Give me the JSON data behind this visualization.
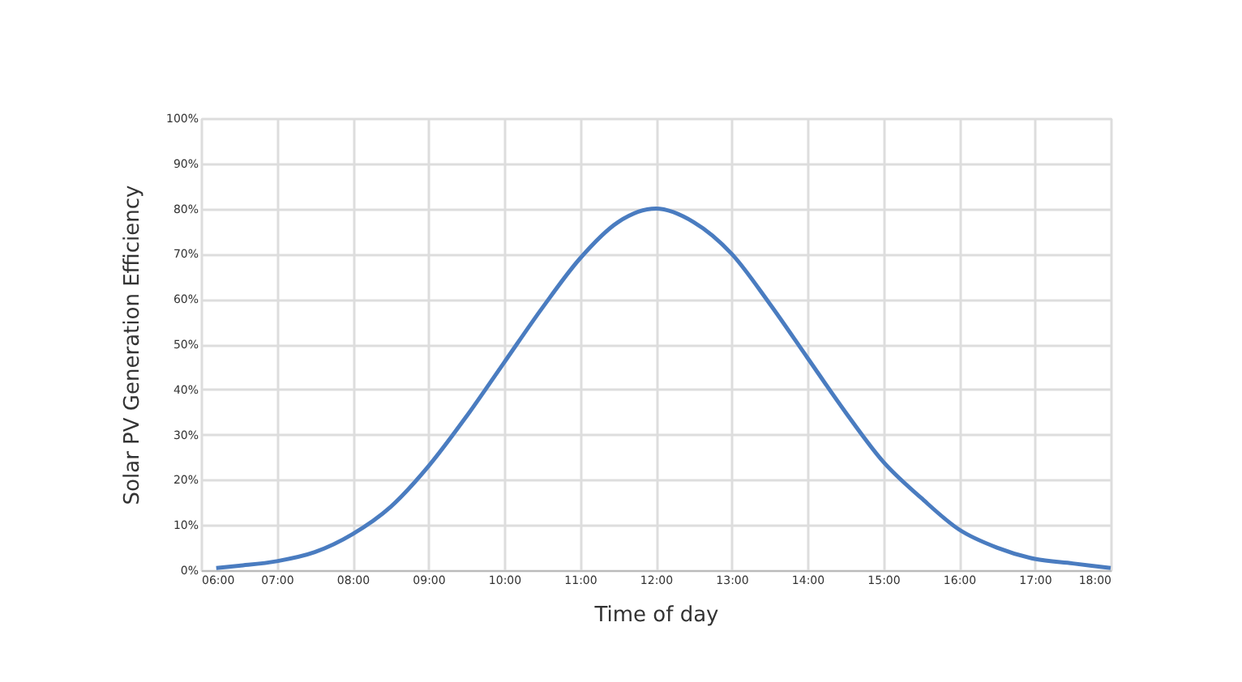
{
  "chart_data": {
    "type": "line",
    "xlabel": "Time of day",
    "ylabel": "Solar PV Generation Efficiency",
    "x": [
      6.2,
      6.5,
      7,
      7.5,
      8,
      8.5,
      9,
      9.5,
      10,
      10.5,
      11,
      11.5,
      12,
      12.5,
      13,
      13.5,
      14,
      14.5,
      15,
      15.5,
      16,
      16.5,
      17,
      17.5,
      18
    ],
    "series": [
      {
        "color": "#4a7cc0",
        "values": [
          0.5,
          1,
          2,
          4,
          8,
          14,
          23,
          34,
          46,
          58,
          69,
          77,
          80,
          77,
          70,
          59,
          47,
          35,
          24,
          16,
          9,
          5,
          2.5,
          1.5,
          0.5
        ]
      }
    ],
    "xlim": [
      6,
      18
    ],
    "xticks": [
      {
        "value": 6,
        "label": "06:00"
      },
      {
        "value": 7,
        "label": "07:00"
      },
      {
        "value": 8,
        "label": "08:00"
      },
      {
        "value": 9,
        "label": "09:00"
      },
      {
        "value": 10,
        "label": "10:00"
      },
      {
        "value": 11,
        "label": "11:00"
      },
      {
        "value": 12,
        "label": "12:00"
      },
      {
        "value": 13,
        "label": "13:00"
      },
      {
        "value": 14,
        "label": "14:00"
      },
      {
        "value": 15,
        "label": "15:00"
      },
      {
        "value": 16,
        "label": "16:00"
      },
      {
        "value": 17,
        "label": "17:00"
      },
      {
        "value": 18,
        "label": "18:00"
      }
    ],
    "ylim": [
      0,
      100
    ],
    "yticks": [
      {
        "value": 0,
        "label": "0%"
      },
      {
        "value": 10,
        "label": "10%"
      },
      {
        "value": 20,
        "label": "20%"
      },
      {
        "value": 30,
        "label": "30%"
      },
      {
        "value": 40,
        "label": "40%"
      },
      {
        "value": 50,
        "label": "50%"
      },
      {
        "value": 60,
        "label": "60%"
      },
      {
        "value": 70,
        "label": "70%"
      },
      {
        "value": 80,
        "label": "80%"
      },
      {
        "value": 90,
        "label": "90%"
      },
      {
        "value": 100,
        "label": "100%"
      }
    ],
    "grid": true,
    "marker": "none",
    "line_style": "solid"
  }
}
